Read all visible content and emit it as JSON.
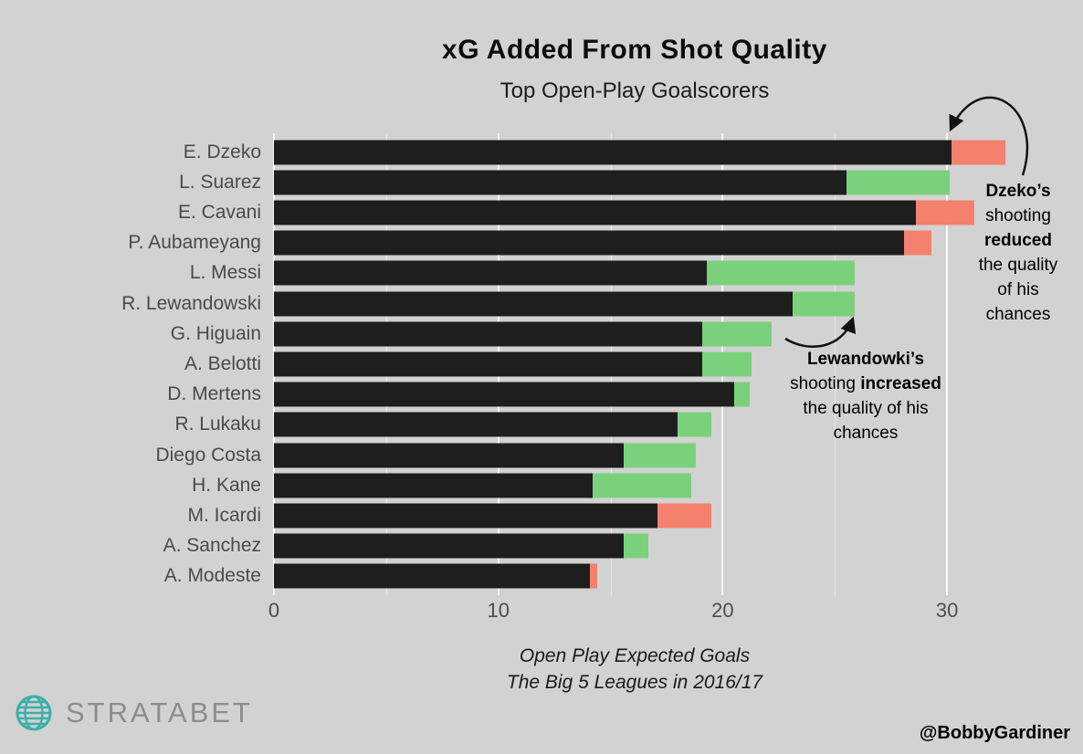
{
  "chart_data": {
    "type": "bar",
    "orientation": "horizontal",
    "title": "xG Added From Shot Quality",
    "subtitle": "Top Open-Play Goalscorers",
    "caption_line1": "Open Play Expected Goals",
    "caption_line2": "The Big 5 Leagues in 2016/17",
    "xlabel": "",
    "ylabel": "",
    "xlim": [
      0,
      35
    ],
    "x_ticks": [
      0,
      10,
      20,
      30
    ],
    "grid": {
      "major_color": "#ffffff",
      "minor_ticks": [
        5,
        15,
        25
      ]
    },
    "legend": "none",
    "colors": {
      "base": "#1e1e1e",
      "increased": "#7bd17b",
      "reduced": "#f4806e"
    },
    "bars": [
      {
        "player": "E. Dzeko",
        "open_play_xg": 30.2,
        "end": 32.6,
        "change": "reduced"
      },
      {
        "player": "L. Suarez",
        "open_play_xg": 25.5,
        "end": 30.1,
        "change": "increased"
      },
      {
        "player": "E. Cavani",
        "open_play_xg": 28.6,
        "end": 31.2,
        "change": "reduced"
      },
      {
        "player": "P. Aubameyang",
        "open_play_xg": 28.1,
        "end": 29.3,
        "change": "reduced"
      },
      {
        "player": "L. Messi",
        "open_play_xg": 19.3,
        "end": 25.9,
        "change": "increased"
      },
      {
        "player": "R. Lewandowski",
        "open_play_xg": 23.1,
        "end": 25.9,
        "change": "increased"
      },
      {
        "player": "G. Higuain",
        "open_play_xg": 19.1,
        "end": 22.2,
        "change": "increased"
      },
      {
        "player": "A. Belotti",
        "open_play_xg": 19.1,
        "end": 21.3,
        "change": "increased"
      },
      {
        "player": "D. Mertens",
        "open_play_xg": 20.5,
        "end": 21.2,
        "change": "increased"
      },
      {
        "player": "R. Lukaku",
        "open_play_xg": 18.0,
        "end": 19.5,
        "change": "increased"
      },
      {
        "player": "Diego Costa",
        "open_play_xg": 15.6,
        "end": 18.8,
        "change": "increased"
      },
      {
        "player": "H. Kane",
        "open_play_xg": 14.2,
        "end": 18.6,
        "change": "increased"
      },
      {
        "player": "M. Icardi",
        "open_play_xg": 17.1,
        "end": 19.5,
        "change": "reduced"
      },
      {
        "player": "A. Sanchez",
        "open_play_xg": 15.6,
        "end": 16.7,
        "change": "increased"
      },
      {
        "player": "A. Modeste",
        "open_play_xg": 14.1,
        "end": 14.4,
        "change": "reduced"
      }
    ]
  },
  "annotations": {
    "dzeko": {
      "l1": "Dzeko’s",
      "l2": "shooting",
      "l3": "reduced",
      "l4": "the quality",
      "l5": "of his",
      "l6": "chances"
    },
    "lewandowski": {
      "l1": "Lewandowki’s",
      "l2a": "shooting ",
      "l2b": "increased",
      "l3": "the quality of his",
      "l4": "chances"
    }
  },
  "footer": {
    "brand": "STRATABET",
    "credit": "@BobbyGardiner"
  }
}
